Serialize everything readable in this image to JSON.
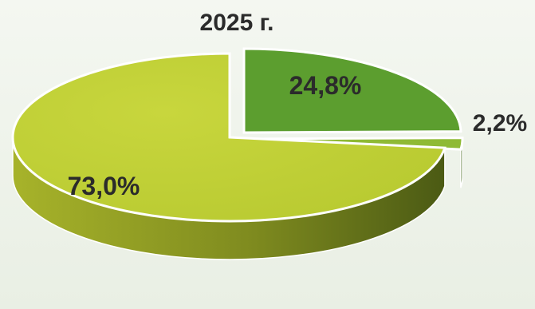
{
  "chart_data": {
    "type": "pie",
    "title": "2025 г.",
    "slices": [
      {
        "label": "24,8%",
        "value": 24.8,
        "color": "#5c9e2f"
      },
      {
        "label": "2,2%",
        "value": 2.2,
        "color": "#8fba35"
      },
      {
        "label": "73,0%",
        "value": 73.0,
        "color": "#bfcf36"
      }
    ],
    "style": "3d-exploded"
  }
}
